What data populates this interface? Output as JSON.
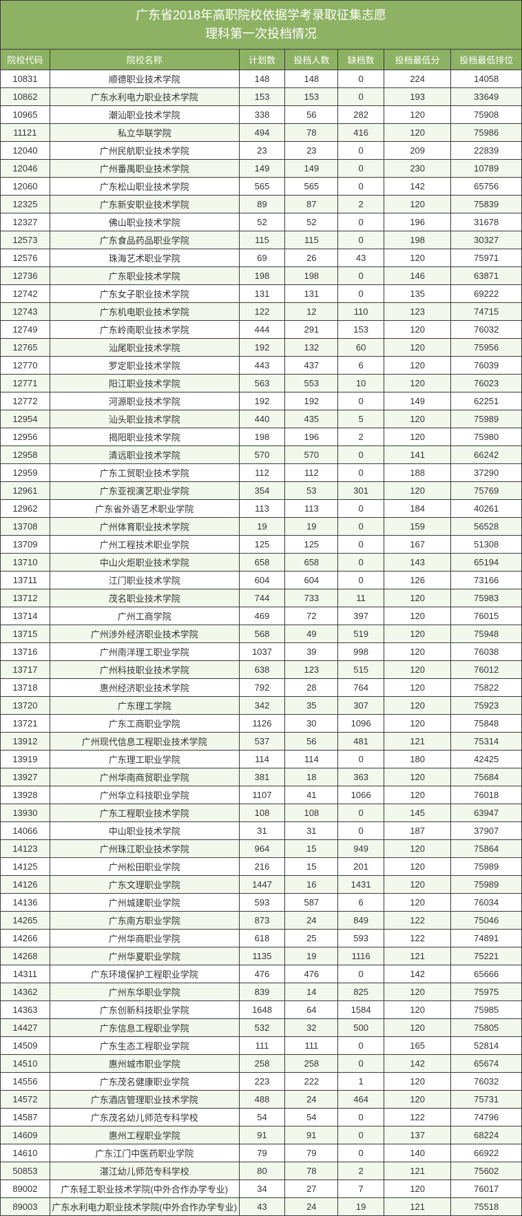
{
  "title_line1": "广东省2018年高职院校依据学考录取征集志愿",
  "title_line2": "理科第一次投档情况",
  "headers": {
    "code": "院校代码",
    "name": "院校名称",
    "plan": "计划数",
    "filed": "投档人数",
    "shortfall": "缺档数",
    "minscore": "投档最低分",
    "minrank": "投档最低排位"
  },
  "colors": {
    "header_bg": "#8db263",
    "header_text": "#ffffff",
    "row_even_bg": "#f3f8ed",
    "row_odd_bg": "#ffffff",
    "border": "#3a3a3a",
    "text": "#333333"
  },
  "rows": [
    {
      "code": "10831",
      "name": "顺德职业技术学院",
      "plan": "148",
      "filed": "148",
      "shortfall": "0",
      "minscore": "224",
      "minrank": "14058"
    },
    {
      "code": "10862",
      "name": "广东水利电力职业技术学院",
      "plan": "153",
      "filed": "153",
      "shortfall": "0",
      "minscore": "193",
      "minrank": "33649"
    },
    {
      "code": "10965",
      "name": "潮汕职业技术学院",
      "plan": "338",
      "filed": "56",
      "shortfall": "282",
      "minscore": "120",
      "minrank": "75908"
    },
    {
      "code": "11121",
      "name": "私立华联学院",
      "plan": "494",
      "filed": "78",
      "shortfall": "416",
      "minscore": "120",
      "minrank": "75986"
    },
    {
      "code": "12040",
      "name": "广州民航职业技术学院",
      "plan": "23",
      "filed": "23",
      "shortfall": "0",
      "minscore": "209",
      "minrank": "22839"
    },
    {
      "code": "12046",
      "name": "广州番禺职业技术学院",
      "plan": "149",
      "filed": "149",
      "shortfall": "0",
      "minscore": "230",
      "minrank": "10789"
    },
    {
      "code": "12060",
      "name": "广东松山职业技术学院",
      "plan": "565",
      "filed": "565",
      "shortfall": "0",
      "minscore": "142",
      "minrank": "65756"
    },
    {
      "code": "12325",
      "name": "广东新安职业技术学院",
      "plan": "89",
      "filed": "87",
      "shortfall": "2",
      "minscore": "120",
      "minrank": "75839"
    },
    {
      "code": "12327",
      "name": "佛山职业技术学院",
      "plan": "52",
      "filed": "52",
      "shortfall": "0",
      "minscore": "196",
      "minrank": "31678"
    },
    {
      "code": "12573",
      "name": "广东食品药品职业学院",
      "plan": "115",
      "filed": "115",
      "shortfall": "0",
      "minscore": "198",
      "minrank": "30327"
    },
    {
      "code": "12576",
      "name": "珠海艺术职业学院",
      "plan": "69",
      "filed": "26",
      "shortfall": "43",
      "minscore": "120",
      "minrank": "75971"
    },
    {
      "code": "12736",
      "name": "广东职业技术学院",
      "plan": "198",
      "filed": "198",
      "shortfall": "0",
      "minscore": "146",
      "minrank": "63871"
    },
    {
      "code": "12742",
      "name": "广东女子职业技术学院",
      "plan": "131",
      "filed": "131",
      "shortfall": "0",
      "minscore": "135",
      "minrank": "69222"
    },
    {
      "code": "12743",
      "name": "广东机电职业技术学院",
      "plan": "122",
      "filed": "12",
      "shortfall": "110",
      "minscore": "123",
      "minrank": "74715"
    },
    {
      "code": "12749",
      "name": "广东岭南职业技术学院",
      "plan": "444",
      "filed": "291",
      "shortfall": "153",
      "minscore": "120",
      "minrank": "76032"
    },
    {
      "code": "12765",
      "name": "汕尾职业技术学院",
      "plan": "192",
      "filed": "132",
      "shortfall": "60",
      "minscore": "120",
      "minrank": "75956"
    },
    {
      "code": "12770",
      "name": "罗定职业技术学院",
      "plan": "443",
      "filed": "437",
      "shortfall": "6",
      "minscore": "120",
      "minrank": "76039"
    },
    {
      "code": "12771",
      "name": "阳江职业技术学院",
      "plan": "563",
      "filed": "553",
      "shortfall": "10",
      "minscore": "120",
      "minrank": "76023"
    },
    {
      "code": "12772",
      "name": "河源职业技术学院",
      "plan": "192",
      "filed": "192",
      "shortfall": "0",
      "minscore": "149",
      "minrank": "62251"
    },
    {
      "code": "12954",
      "name": "汕头职业技术学院",
      "plan": "440",
      "filed": "435",
      "shortfall": "5",
      "minscore": "120",
      "minrank": "75989"
    },
    {
      "code": "12956",
      "name": "揭阳职业技术学院",
      "plan": "198",
      "filed": "196",
      "shortfall": "2",
      "minscore": "120",
      "minrank": "75980"
    },
    {
      "code": "12958",
      "name": "清远职业技术学院",
      "plan": "570",
      "filed": "570",
      "shortfall": "0",
      "minscore": "141",
      "minrank": "66242"
    },
    {
      "code": "12959",
      "name": "广东工贸职业技术学院",
      "plan": "112",
      "filed": "112",
      "shortfall": "0",
      "minscore": "188",
      "minrank": "37290"
    },
    {
      "code": "12961",
      "name": "广东亚视演艺职业学院",
      "plan": "354",
      "filed": "53",
      "shortfall": "301",
      "minscore": "120",
      "minrank": "75769"
    },
    {
      "code": "12962",
      "name": "广东省外语艺术职业学院",
      "plan": "113",
      "filed": "113",
      "shortfall": "0",
      "minscore": "184",
      "minrank": "40261"
    },
    {
      "code": "13708",
      "name": "广州体育职业技术学院",
      "plan": "19",
      "filed": "19",
      "shortfall": "0",
      "minscore": "159",
      "minrank": "56528"
    },
    {
      "code": "13709",
      "name": "广州工程技术职业学院",
      "plan": "125",
      "filed": "125",
      "shortfall": "0",
      "minscore": "167",
      "minrank": "51308"
    },
    {
      "code": "13710",
      "name": "中山火炬职业技术学院",
      "plan": "658",
      "filed": "658",
      "shortfall": "0",
      "minscore": "143",
      "minrank": "65194"
    },
    {
      "code": "13711",
      "name": "江门职业技术学院",
      "plan": "604",
      "filed": "604",
      "shortfall": "0",
      "minscore": "126",
      "minrank": "73166"
    },
    {
      "code": "13712",
      "name": "茂名职业技术学院",
      "plan": "744",
      "filed": "733",
      "shortfall": "11",
      "minscore": "120",
      "minrank": "75983"
    },
    {
      "code": "13714",
      "name": "广州工商学院",
      "plan": "469",
      "filed": "72",
      "shortfall": "397",
      "minscore": "120",
      "minrank": "76015"
    },
    {
      "code": "13715",
      "name": "广州涉外经济职业技术学院",
      "plan": "568",
      "filed": "49",
      "shortfall": "519",
      "minscore": "120",
      "minrank": "75948"
    },
    {
      "code": "13716",
      "name": "广州南洋理工职业学院",
      "plan": "1037",
      "filed": "39",
      "shortfall": "998",
      "minscore": "120",
      "minrank": "76038"
    },
    {
      "code": "13717",
      "name": "广州科技职业技术学院",
      "plan": "638",
      "filed": "123",
      "shortfall": "515",
      "minscore": "120",
      "minrank": "76012"
    },
    {
      "code": "13718",
      "name": "惠州经济职业技术学院",
      "plan": "792",
      "filed": "28",
      "shortfall": "764",
      "minscore": "120",
      "minrank": "75822"
    },
    {
      "code": "13720",
      "name": "广东理工学院",
      "plan": "342",
      "filed": "35",
      "shortfall": "307",
      "minscore": "120",
      "minrank": "75923"
    },
    {
      "code": "13721",
      "name": "广东工商职业学院",
      "plan": "1126",
      "filed": "30",
      "shortfall": "1096",
      "minscore": "120",
      "minrank": "75848"
    },
    {
      "code": "13912",
      "name": "广州现代信息工程职业技术学院",
      "plan": "537",
      "filed": "56",
      "shortfall": "481",
      "minscore": "121",
      "minrank": "75314"
    },
    {
      "code": "13919",
      "name": "广东理工职业学院",
      "plan": "114",
      "filed": "114",
      "shortfall": "0",
      "minscore": "180",
      "minrank": "42425"
    },
    {
      "code": "13927",
      "name": "广州华南商贸职业学院",
      "plan": "381",
      "filed": "18",
      "shortfall": "363",
      "minscore": "120",
      "minrank": "75684"
    },
    {
      "code": "13928",
      "name": "广州华立科技职业学院",
      "plan": "1107",
      "filed": "41",
      "shortfall": "1066",
      "minscore": "120",
      "minrank": "76018"
    },
    {
      "code": "13930",
      "name": "广东工程职业技术学院",
      "plan": "108",
      "filed": "108",
      "shortfall": "0",
      "minscore": "145",
      "minrank": "63947"
    },
    {
      "code": "14066",
      "name": "中山职业技术学院",
      "plan": "31",
      "filed": "31",
      "shortfall": "0",
      "minscore": "187",
      "minrank": "37907"
    },
    {
      "code": "14123",
      "name": "广州珠江职业技术学院",
      "plan": "964",
      "filed": "15",
      "shortfall": "949",
      "minscore": "120",
      "minrank": "75864"
    },
    {
      "code": "14125",
      "name": "广州松田职业学院",
      "plan": "216",
      "filed": "15",
      "shortfall": "201",
      "minscore": "120",
      "minrank": "75989"
    },
    {
      "code": "14126",
      "name": "广东文理职业学院",
      "plan": "1447",
      "filed": "16",
      "shortfall": "1431",
      "minscore": "120",
      "minrank": "75989"
    },
    {
      "code": "14136",
      "name": "广州城建职业学院",
      "plan": "593",
      "filed": "587",
      "shortfall": "6",
      "minscore": "120",
      "minrank": "76034"
    },
    {
      "code": "14265",
      "name": "广东南方职业学院",
      "plan": "873",
      "filed": "24",
      "shortfall": "849",
      "minscore": "122",
      "minrank": "75046"
    },
    {
      "code": "14266",
      "name": "广州华商职业学院",
      "plan": "618",
      "filed": "25",
      "shortfall": "593",
      "minscore": "122",
      "minrank": "74891"
    },
    {
      "code": "14268",
      "name": "广州华夏职业学院",
      "plan": "1135",
      "filed": "19",
      "shortfall": "1116",
      "minscore": "121",
      "minrank": "75221"
    },
    {
      "code": "14311",
      "name": "广东环境保护工程职业学院",
      "plan": "476",
      "filed": "476",
      "shortfall": "0",
      "minscore": "142",
      "minrank": "65666"
    },
    {
      "code": "14362",
      "name": "广州东华职业学院",
      "plan": "839",
      "filed": "14",
      "shortfall": "825",
      "minscore": "120",
      "minrank": "75975"
    },
    {
      "code": "14363",
      "name": "广东创新科技职业学院",
      "plan": "1648",
      "filed": "64",
      "shortfall": "1584",
      "minscore": "120",
      "minrank": "75985"
    },
    {
      "code": "14427",
      "name": "广东信息工程职业学院",
      "plan": "532",
      "filed": "32",
      "shortfall": "500",
      "minscore": "120",
      "minrank": "75805"
    },
    {
      "code": "14509",
      "name": "广东生态工程职业学院",
      "plan": "111",
      "filed": "111",
      "shortfall": "0",
      "minscore": "165",
      "minrank": "52814"
    },
    {
      "code": "14510",
      "name": "惠州城市职业学院",
      "plan": "258",
      "filed": "258",
      "shortfall": "0",
      "minscore": "142",
      "minrank": "65674"
    },
    {
      "code": "14556",
      "name": "广东茂名健康职业学院",
      "plan": "223",
      "filed": "222",
      "shortfall": "1",
      "minscore": "120",
      "minrank": "76032"
    },
    {
      "code": "14572",
      "name": "广东酒店管理职业技术学院",
      "plan": "488",
      "filed": "24",
      "shortfall": "464",
      "minscore": "120",
      "minrank": "75731"
    },
    {
      "code": "14587",
      "name": "广东茂名幼儿师范专科学校",
      "plan": "54",
      "filed": "54",
      "shortfall": "0",
      "minscore": "122",
      "minrank": "74796"
    },
    {
      "code": "14609",
      "name": "惠州工程职业学院",
      "plan": "91",
      "filed": "91",
      "shortfall": "0",
      "minscore": "137",
      "minrank": "68224"
    },
    {
      "code": "14610",
      "name": "广东江门中医药职业学院",
      "plan": "79",
      "filed": "79",
      "shortfall": "0",
      "minscore": "140",
      "minrank": "66922"
    },
    {
      "code": "50853",
      "name": "湛江幼儿师范专科学校",
      "plan": "80",
      "filed": "78",
      "shortfall": "2",
      "minscore": "121",
      "minrank": "75602"
    },
    {
      "code": "89002",
      "name": "广东轻工职业技术学院(中外合作办学专业)",
      "plan": "34",
      "filed": "27",
      "shortfall": "7",
      "minscore": "120",
      "minrank": "76017"
    },
    {
      "code": "89003",
      "name": "广东水利电力职业技术学院(中外合作办学专业)",
      "plan": "43",
      "filed": "24",
      "shortfall": "19",
      "minscore": "121",
      "minrank": "75518"
    }
  ]
}
